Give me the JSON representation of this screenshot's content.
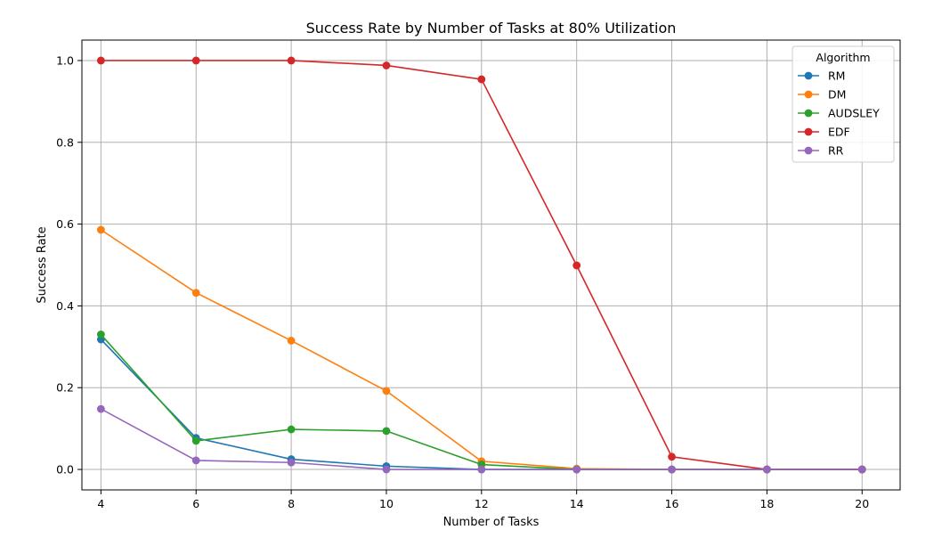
{
  "chart_data": {
    "type": "line",
    "title": "Success Rate by Number of Tasks at 80% Utilization",
    "xlabel": "Number of Tasks",
    "ylabel": "Success Rate",
    "x": [
      4,
      6,
      8,
      10,
      12,
      14,
      16,
      18,
      20
    ],
    "xticks": [
      "4",
      "6",
      "8",
      "10",
      "12",
      "14",
      "16",
      "18",
      "20"
    ],
    "yticks": [
      "0.0",
      "0.2",
      "0.4",
      "0.6",
      "0.8",
      "1.0"
    ],
    "xlim": [
      3.6,
      20.8
    ],
    "ylim": [
      -0.05,
      1.05
    ],
    "grid": true,
    "legend": {
      "title": "Algorithm",
      "placement": "top-right"
    },
    "series": [
      {
        "name": "RM",
        "color": "#1f77b4",
        "values": [
          0.318,
          0.077,
          0.025,
          0.008,
          0.0,
          0.0,
          0.0,
          0.0,
          0.0
        ]
      },
      {
        "name": "DM",
        "color": "#ff7f0e",
        "values": [
          0.586,
          0.432,
          0.315,
          0.192,
          0.02,
          0.002,
          0.0,
          0.0,
          0.0
        ]
      },
      {
        "name": "AUDSLEY",
        "color": "#2ca02c",
        "values": [
          0.33,
          0.07,
          0.098,
          0.094,
          0.012,
          0.0,
          0.0,
          0.0,
          0.0
        ]
      },
      {
        "name": "EDF",
        "color": "#d62728",
        "values": [
          1.0,
          1.0,
          1.0,
          0.988,
          0.954,
          0.499,
          0.031,
          0.0,
          0.0
        ]
      },
      {
        "name": "RR",
        "color": "#9467bd",
        "values": [
          0.148,
          0.022,
          0.017,
          0.0,
          0.0,
          0.0,
          0.0,
          0.0,
          0.0
        ]
      }
    ]
  }
}
